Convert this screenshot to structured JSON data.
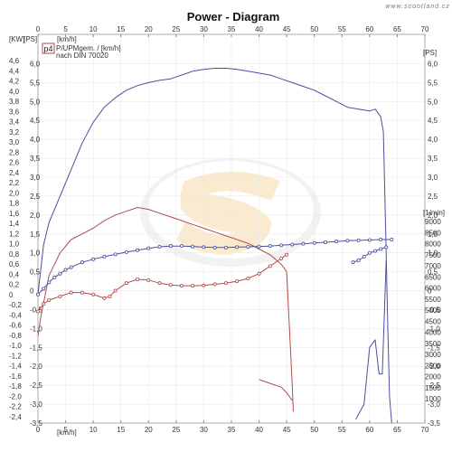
{
  "chart_data": {
    "type": "line",
    "title": "Power - Diagram",
    "watermark": "www.scootland.cz",
    "legend": {
      "badge": "p4",
      "line1": "P/UPMgem. / [km/h]",
      "line2": "nach DIN 70020"
    },
    "axes": {
      "x_unit_top": "[km/h]",
      "x_unit_bottom": "[km/h]",
      "y_left_outer_unit": "[KW]",
      "y_left_inner_unit": "[PS]",
      "y_right_rpm_unit": "[1/min]",
      "y_right_ps_unit": "[PS]",
      "x_ticks": [
        0,
        5,
        10,
        15,
        20,
        25,
        30,
        35,
        40,
        45,
        50,
        55,
        60,
        65,
        70
      ],
      "xlim": [
        0,
        70
      ],
      "kw_ticks": [
        "4,6",
        "4,4",
        "4,2",
        "4,0",
        "3,8",
        "3,6",
        "3,4",
        "3,2",
        "3,0",
        "2,8",
        "2,6",
        "2,4",
        "2,2",
        "2,0",
        "1,8",
        "1,6",
        "1,4",
        "1,2",
        "1,0",
        "0,8",
        "0,6",
        "0,4",
        "0,2",
        "0",
        "-0,2",
        "-0,4",
        "-0,6",
        "-0,8",
        "-1,0",
        "-1,2",
        "-1,4",
        "-1,6",
        "-1,8",
        "-2,0",
        "-2,2",
        "-2,4"
      ],
      "kw_lim": [
        -2.4,
        4.6
      ],
      "ps_left_ticks": [
        "6,0",
        "5,5",
        "5,0",
        "4,5",
        "4,0",
        "3,5",
        "3,0",
        "2,5",
        "2,0",
        "1,5",
        "1,0",
        "0,5",
        "0",
        "-0,5",
        "-1,0",
        "-1,5",
        "-2,0",
        "-2,5",
        "-3,0",
        "-3,5"
      ],
      "ps_right_ticks": [
        "6,0",
        "5,5",
        "5,0",
        "4,5",
        "4,0",
        "3,5",
        "3,0",
        "2,5",
        "2,0",
        "1,5",
        "1,0",
        "0,5",
        "0",
        "-0,5",
        "-1,0",
        "-1,5",
        "-2,0",
        "-2,5",
        "-3,0",
        "-3,5"
      ],
      "ps_lim": [
        -3.5,
        6.25
      ],
      "rpm_ticks": [
        "9000",
        "8500",
        "8000",
        "7500",
        "7000",
        "6500",
        "6000",
        "5500",
        "5000",
        "4500",
        "4000",
        "3500",
        "3000",
        "2500",
        "2000",
        "1500",
        "1000"
      ],
      "rpm_lim": [
        1000,
        9000
      ]
    },
    "series": [
      {
        "color": "#4b4f9e",
        "unit": "PS",
        "marker": false,
        "points": [
          [
            0,
            -0.1
          ],
          [
            1,
            1.2
          ],
          [
            2,
            1.8
          ],
          [
            4,
            2.5
          ],
          [
            6,
            3.2
          ],
          [
            8,
            3.9
          ],
          [
            10,
            4.45
          ],
          [
            12,
            4.85
          ],
          [
            14,
            5.1
          ],
          [
            16,
            5.3
          ],
          [
            18,
            5.42
          ],
          [
            20,
            5.5
          ],
          [
            22,
            5.56
          ],
          [
            24,
            5.6
          ],
          [
            26,
            5.7
          ],
          [
            28,
            5.8
          ],
          [
            30,
            5.85
          ],
          [
            32,
            5.88
          ],
          [
            34,
            5.88
          ],
          [
            36,
            5.85
          ],
          [
            38,
            5.8
          ],
          [
            40,
            5.75
          ],
          [
            42,
            5.7
          ],
          [
            44,
            5.6
          ],
          [
            46,
            5.5
          ],
          [
            48,
            5.4
          ],
          [
            50,
            5.3
          ],
          [
            52,
            5.15
          ],
          [
            54,
            5.0
          ],
          [
            56,
            4.85
          ],
          [
            58,
            4.8
          ],
          [
            60,
            4.75
          ],
          [
            61,
            4.8
          ],
          [
            62,
            4.6
          ],
          [
            62.5,
            4.2
          ],
          [
            63,
            1.0
          ],
          [
            63.3,
            -1.0
          ],
          [
            63.6,
            -2.8
          ],
          [
            64,
            -3.5
          ]
        ]
      },
      {
        "color": "#b04b4b",
        "unit": "PS",
        "marker": false,
        "points": [
          [
            0,
            -1.2
          ],
          [
            0.5,
            -0.7
          ],
          [
            2,
            0.4
          ],
          [
            4,
            1.0
          ],
          [
            6,
            1.35
          ],
          [
            8,
            1.5
          ],
          [
            10,
            1.65
          ],
          [
            12,
            1.85
          ],
          [
            14,
            2.0
          ],
          [
            16,
            2.1
          ],
          [
            18,
            2.2
          ],
          [
            20,
            2.15
          ],
          [
            22,
            2.05
          ],
          [
            24,
            1.95
          ],
          [
            26,
            1.85
          ],
          [
            28,
            1.75
          ],
          [
            30,
            1.65
          ],
          [
            32,
            1.55
          ],
          [
            34,
            1.45
          ],
          [
            36,
            1.35
          ],
          [
            38,
            1.25
          ],
          [
            40,
            1.1
          ],
          [
            42,
            0.95
          ],
          [
            44,
            0.7
          ],
          [
            45,
            0.5
          ],
          [
            45.5,
            -1.0
          ],
          [
            46,
            -2.5
          ],
          [
            46.2,
            -3.2
          ]
        ]
      },
      {
        "color": "#4b4f9e",
        "unit": "PS",
        "marker": true,
        "points": [
          [
            0,
            -0.1
          ],
          [
            1,
            0.05
          ],
          [
            2,
            0.22
          ],
          [
            3,
            0.35
          ],
          [
            4,
            0.45
          ],
          [
            5,
            0.55
          ],
          [
            6,
            0.62
          ],
          [
            8,
            0.75
          ],
          [
            10,
            0.83
          ],
          [
            12,
            0.9
          ],
          [
            14,
            0.96
          ],
          [
            16,
            1.02
          ],
          [
            18,
            1.07
          ],
          [
            20,
            1.12
          ],
          [
            22,
            1.16
          ],
          [
            24,
            1.18
          ],
          [
            26,
            1.18
          ],
          [
            28,
            1.17
          ],
          [
            30,
            1.15
          ],
          [
            32,
            1.14
          ],
          [
            34,
            1.14
          ],
          [
            36,
            1.15
          ],
          [
            38,
            1.16
          ],
          [
            40,
            1.17
          ],
          [
            42,
            1.18
          ],
          [
            44,
            1.2
          ],
          [
            46,
            1.22
          ],
          [
            48,
            1.24
          ],
          [
            50,
            1.26
          ],
          [
            52,
            1.28
          ],
          [
            54,
            1.3
          ],
          [
            56,
            1.32
          ],
          [
            58,
            1.33
          ],
          [
            60,
            1.34
          ],
          [
            62,
            1.35
          ],
          [
            64,
            1.35
          ]
        ]
      },
      {
        "color": "#b04b4b",
        "unit": "PS",
        "marker": true,
        "points": [
          [
            0,
            -0.55
          ],
          [
            1,
            -0.35
          ],
          [
            2,
            -0.25
          ],
          [
            4,
            -0.15
          ],
          [
            6,
            -0.05
          ],
          [
            8,
            -0.05
          ],
          [
            10,
            -0.1
          ],
          [
            12,
            -0.2
          ],
          [
            13,
            -0.15
          ],
          [
            14,
            0.0
          ],
          [
            16,
            0.2
          ],
          [
            18,
            0.3
          ],
          [
            20,
            0.28
          ],
          [
            22,
            0.2
          ],
          [
            24,
            0.15
          ],
          [
            26,
            0.13
          ],
          [
            28,
            0.13
          ],
          [
            30,
            0.14
          ],
          [
            32,
            0.17
          ],
          [
            34,
            0.2
          ],
          [
            36,
            0.25
          ],
          [
            38,
            0.32
          ],
          [
            40,
            0.45
          ],
          [
            42,
            0.65
          ],
          [
            44,
            0.85
          ],
          [
            45,
            0.95
          ]
        ]
      },
      {
        "color": "#4b4f9e",
        "unit": "PS",
        "marker": true,
        "points": [
          [
            57,
            0.75
          ],
          [
            58,
            0.8
          ],
          [
            59,
            0.9
          ],
          [
            60,
            1.0
          ],
          [
            61,
            1.05
          ],
          [
            62,
            1.1
          ],
          [
            63,
            1.15
          ]
        ]
      },
      {
        "color": "#4b4f9e",
        "unit": "PS",
        "marker": false,
        "points": [
          [
            57.5,
            -3.4
          ],
          [
            59,
            -3.0
          ],
          [
            60,
            -1.5
          ],
          [
            61,
            -1.3
          ],
          [
            61.7,
            -2.2
          ],
          [
            62.3,
            -2.2
          ],
          [
            63,
            0.8
          ]
        ]
      },
      {
        "color": "#b04b4b",
        "unit": "PS",
        "marker": false,
        "points": [
          [
            40,
            -2.35
          ],
          [
            42,
            -2.45
          ],
          [
            44,
            -2.55
          ],
          [
            45,
            -2.7
          ],
          [
            46,
            -2.9
          ]
        ]
      }
    ]
  }
}
